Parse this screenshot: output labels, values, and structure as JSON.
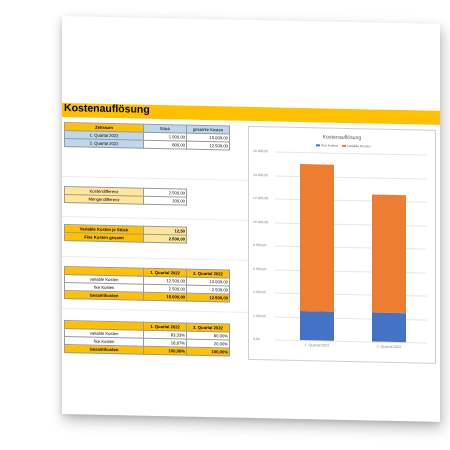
{
  "title": "Kostenauflösung",
  "table1": {
    "headers": [
      "Zeitraum",
      "Stück",
      "gesamte Kosten"
    ],
    "rows": [
      [
        "1. Quartal 2022",
        "1.000,00",
        "15.000,00"
      ],
      [
        "2. Quartal 2022",
        "800,00",
        "12.500,00"
      ]
    ]
  },
  "diffs": {
    "kostendifferenz_label": "Kostendifferenz",
    "kostendifferenz_value": "2.500,00",
    "mengendifferenz_label": "Mengendifferenz",
    "mengendifferenz_value": "200,00"
  },
  "variable": {
    "var_label": "Variable Kosten je Stück",
    "var_value": "12,50",
    "fix_label": "Fixe Kosten gesamt",
    "fix_value": "2.500,00"
  },
  "table2": {
    "headers": [
      "",
      "1. Quartal 2022",
      "2. Quartal 2022"
    ],
    "rows": [
      [
        "variable Kosten",
        "12.500,00",
        "10.000,00"
      ],
      [
        "fixe Kosten",
        "2.500,00",
        "2.500,00"
      ],
      [
        "Gesamtkosten",
        "15.000,00",
        "12.500,00"
      ]
    ]
  },
  "table3": {
    "headers": [
      "",
      "1. Quartal 2022",
      "2. Quartal 2022"
    ],
    "rows": [
      [
        "variable Kosten",
        "83,33%",
        "80,00%"
      ],
      [
        "fixe Kosten",
        "16,67%",
        "20,00%"
      ],
      [
        "Gesamtkosten",
        "100,00%",
        "100,00%"
      ]
    ]
  },
  "colors": {
    "accent": "#ffc000",
    "fixe": "#4472c4",
    "variable": "#ed7d31"
  },
  "chart_data": {
    "type": "bar",
    "stacked": true,
    "title": "Kostenauflösung",
    "categories": [
      "1. Quartal 2022",
      "2. Quartal 2022"
    ],
    "series": [
      {
        "name": "fixe Kosten",
        "values": [
          2500,
          2500
        ]
      },
      {
        "name": "variable Kosten",
        "values": [
          12500,
          10000
        ]
      }
    ],
    "ylim": [
      0,
      16000
    ],
    "yticks": [
      "0,00",
      "2.000,00",
      "4.000,00",
      "6.000,00",
      "8.000,00",
      "10.000,00",
      "12.000,00",
      "14.000,00",
      "16.000,00"
    ],
    "legend": "top"
  }
}
